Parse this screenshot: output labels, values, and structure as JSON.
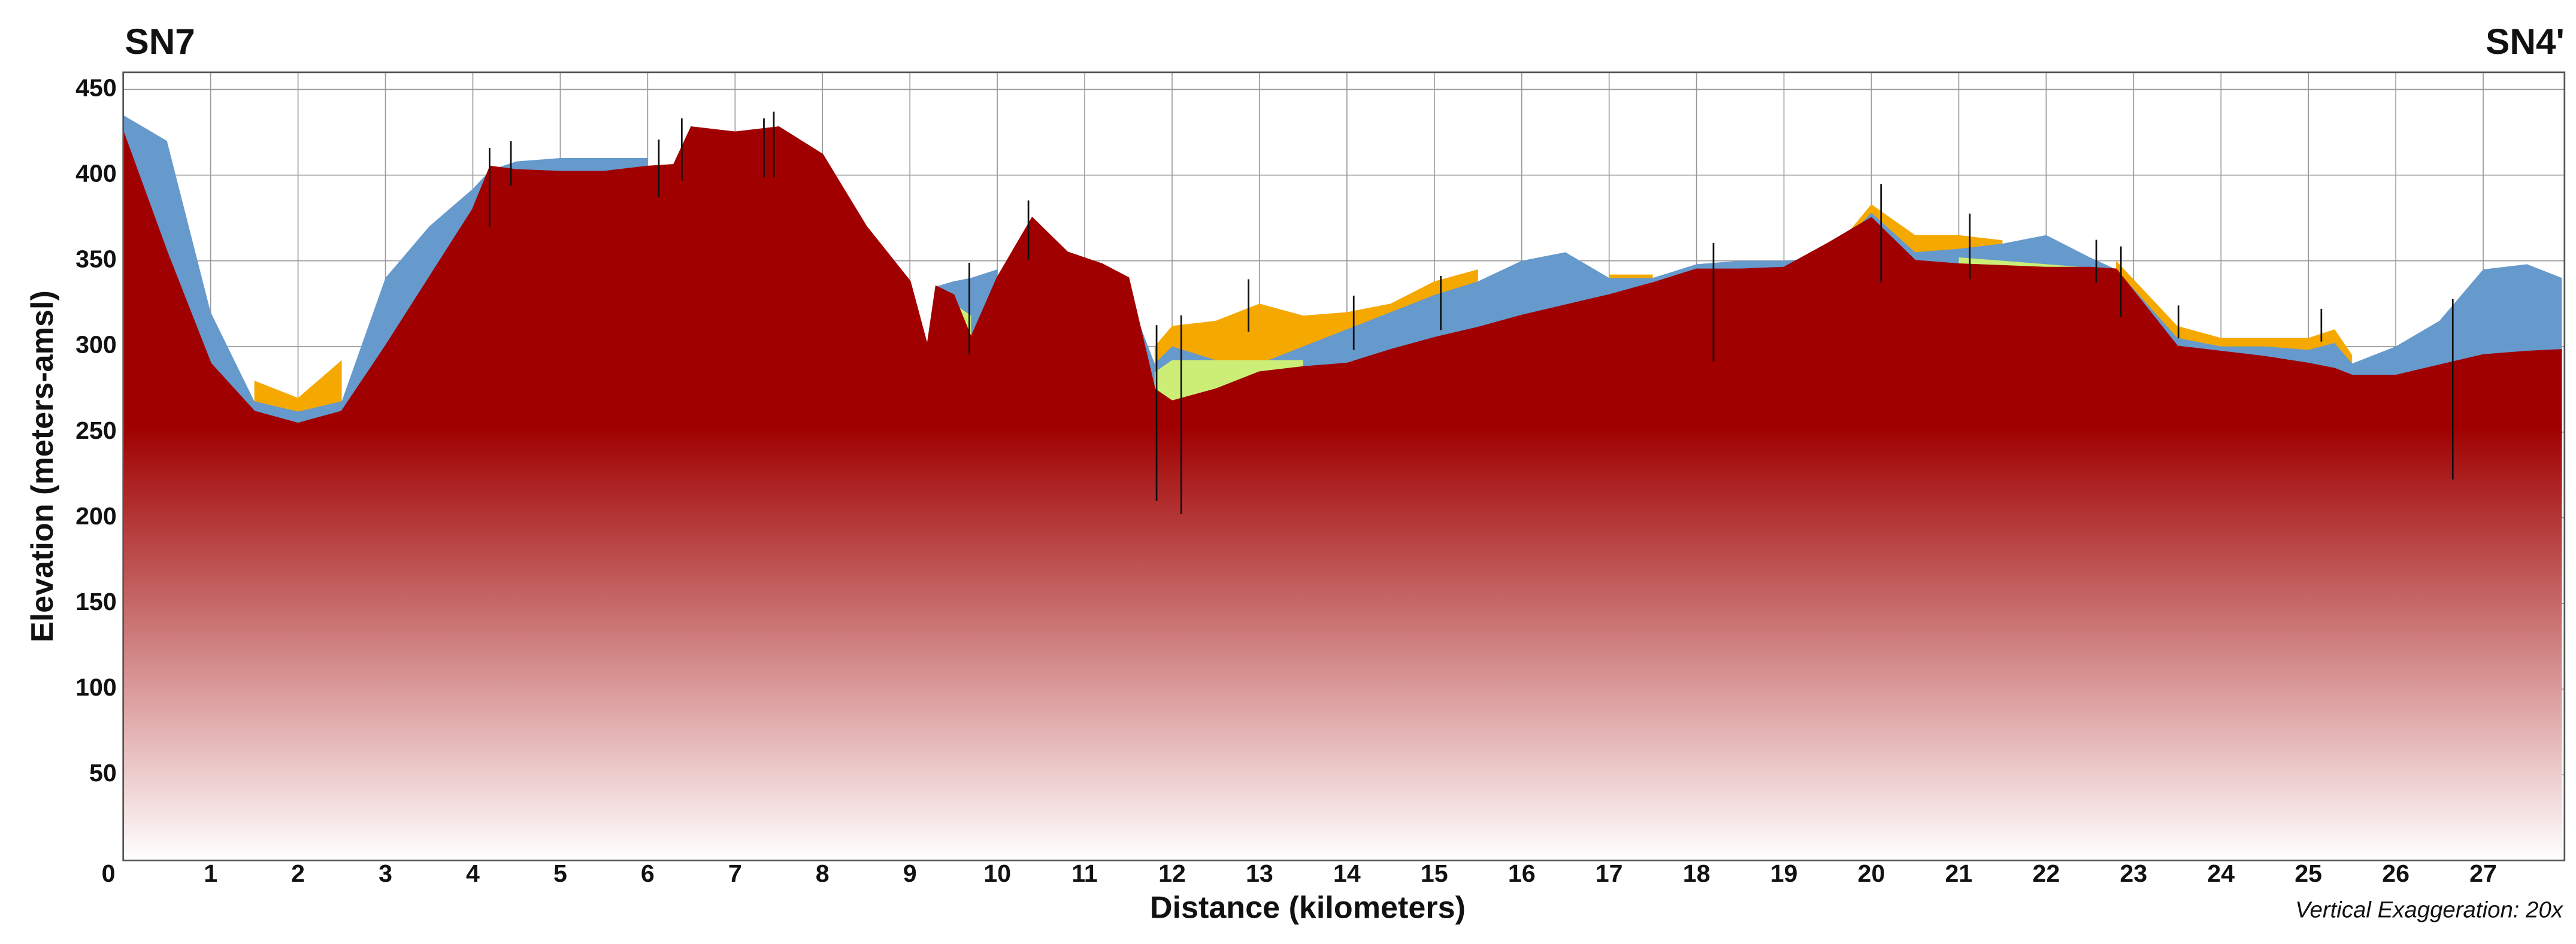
{
  "chart_data": {
    "type": "area",
    "title_left": "SN7",
    "title_right": "SN4'",
    "x_label": "Distance (kilometers)",
    "y_label": "Elevation (meters-amsl)",
    "note": "Vertical Exaggeration: 20x",
    "x": [
      0,
      0.5,
      1,
      1.5,
      2,
      2.5,
      3,
      3.5,
      4,
      4.2,
      4.5,
      5,
      5.5,
      6,
      6.3,
      6.5,
      7,
      7.5,
      8,
      8.5,
      9,
      9.2,
      9.3,
      9.5,
      9.7,
      10,
      10.4,
      10.8,
      11.2,
      11.5,
      11.8,
      12,
      12.5,
      13,
      13.5,
      14,
      14.5,
      15,
      15.5,
      16,
      16.5,
      17,
      17.5,
      18,
      18.5,
      19,
      19.5,
      20,
      20.5,
      21,
      21.5,
      22,
      22.5,
      22.8,
      23.5,
      24,
      24.5,
      25,
      25.3,
      25.5,
      26,
      26.5,
      27,
      27.5,
      27.9
    ],
    "series": [
      {
        "color": "#f5a800",
        "values": [
          null,
          null,
          null,
          280,
          270,
          292,
          null,
          null,
          null,
          null,
          null,
          null,
          null,
          null,
          null,
          null,
          null,
          null,
          null,
          null,
          null,
          null,
          null,
          null,
          null,
          null,
          null,
          null,
          null,
          null,
          300,
          312,
          315,
          325,
          318,
          320,
          325,
          338,
          345,
          null,
          null,
          342,
          342,
          null,
          null,
          null,
          352,
          383,
          365,
          365,
          362,
          null,
          null,
          350,
          312,
          305,
          305,
          305,
          310,
          295,
          null,
          null,
          null,
          null,
          null
        ]
      },
      {
        "color": "#6699cc",
        "values": [
          435,
          420,
          320,
          268,
          262,
          268,
          340,
          370,
          392,
          403,
          408,
          410,
          410,
          410,
          null,
          null,
          null,
          null,
          null,
          null,
          null,
          null,
          335,
          338,
          340,
          345,
          null,
          null,
          338,
          330,
          290,
          300,
          292,
          290,
          300,
          310,
          320,
          330,
          338,
          350,
          355,
          340,
          340,
          348,
          350,
          350,
          352,
          378,
          355,
          357,
          360,
          365,
          352,
          345,
          305,
          300,
          300,
          298,
          302,
          290,
          300,
          315,
          345,
          348,
          340
        ]
      },
      {
        "color": "#ccee77",
        "values": [
          null,
          null,
          null,
          null,
          null,
          null,
          null,
          null,
          null,
          null,
          null,
          null,
          null,
          null,
          null,
          null,
          null,
          null,
          null,
          null,
          null,
          null,
          null,
          325,
          318,
          null,
          null,
          null,
          null,
          null,
          285,
          292,
          292,
          292,
          292,
          null,
          null,
          null,
          null,
          null,
          null,
          null,
          null,
          null,
          null,
          null,
          null,
          null,
          null,
          352,
          350,
          348,
          346,
          null,
          null,
          null,
          null,
          null,
          null,
          null,
          null,
          null,
          null,
          null,
          null
        ]
      },
      {
        "color": "#a00000",
        "values": [
          425,
          355,
          290,
          262,
          255,
          262,
          300,
          340,
          380,
          405,
          403,
          402,
          402,
          405,
          406,
          428,
          425,
          428,
          412,
          370,
          338,
          300,
          335,
          330,
          305,
          340,
          375,
          355,
          348,
          340,
          275,
          268,
          275,
          285,
          288,
          290,
          298,
          305,
          311,
          318,
          324,
          330,
          337,
          345,
          345,
          346,
          360,
          375,
          350,
          348,
          347,
          346,
          346,
          345,
          300,
          297,
          294,
          290,
          287,
          283,
          283,
          289,
          295,
          297,
          298
        ]
      }
    ],
    "xlim": [
      0,
      27.93
    ],
    "ylim": [
      0,
      460
    ],
    "xticks": [
      0,
      1,
      2,
      3,
      4,
      5,
      6,
      7,
      8,
      9,
      10,
      11,
      12,
      13,
      14,
      15,
      16,
      17,
      18,
      19,
      20,
      21,
      22,
      23,
      24,
      25,
      26,
      27
    ],
    "yticks": [
      50,
      100,
      150,
      200,
      250,
      300,
      350,
      400,
      450
    ],
    "grid": true
  }
}
